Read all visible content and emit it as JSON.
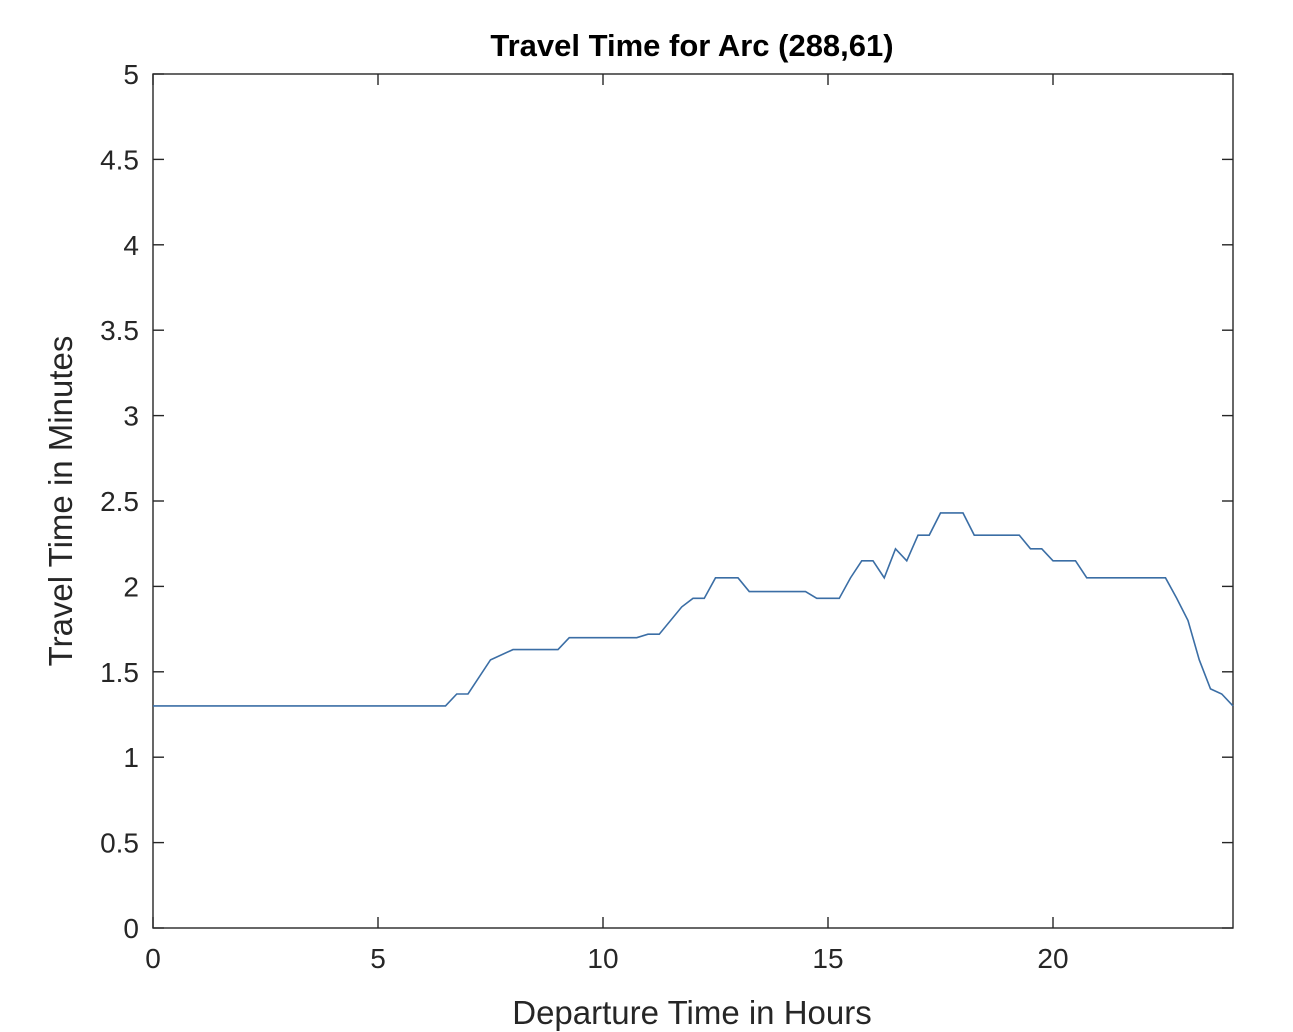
{
  "chart_data": {
    "type": "line",
    "title": "Travel Time for Arc (288,61)",
    "xlabel": "Departure Time in Hours",
    "ylabel": "Travel Time in Minutes",
    "xlim": [
      0,
      24
    ],
    "ylim": [
      0,
      5
    ],
    "x_ticks": [
      "0",
      "5",
      "10",
      "15",
      "20"
    ],
    "y_ticks": [
      "0",
      "0.5",
      "1",
      "1.5",
      "2",
      "2.5",
      "3",
      "3.5",
      "4",
      "4.5",
      "5"
    ],
    "grid": false,
    "series_color": "#3b6ea5",
    "series": [
      {
        "x": [
          0,
          6.5,
          6.75,
          7.0,
          7.5,
          8.0,
          9.0,
          9.25,
          10.75,
          11.0,
          11.25,
          11.75,
          12.0,
          12.25,
          12.5,
          13.0,
          13.25,
          14.5,
          14.75,
          15.25,
          15.5,
          15.75,
          16.0,
          16.25,
          16.5,
          16.75,
          17.0,
          17.25,
          17.5,
          18.0,
          18.25,
          19.25,
          19.5,
          19.75,
          20.0,
          20.5,
          20.75,
          22.5,
          22.75,
          23.0,
          23.25,
          23.5,
          23.75,
          24.0
        ],
        "y": [
          1.3,
          1.3,
          1.37,
          1.37,
          1.57,
          1.63,
          1.63,
          1.7,
          1.7,
          1.72,
          1.72,
          1.88,
          1.93,
          1.93,
          2.05,
          2.05,
          1.97,
          1.97,
          1.93,
          1.93,
          2.05,
          2.15,
          2.15,
          2.05,
          2.22,
          2.15,
          2.3,
          2.3,
          2.43,
          2.43,
          2.3,
          2.3,
          2.22,
          2.22,
          2.15,
          2.15,
          2.05,
          2.05,
          1.93,
          1.8,
          1.57,
          1.4,
          1.37,
          1.3
        ]
      }
    ]
  }
}
